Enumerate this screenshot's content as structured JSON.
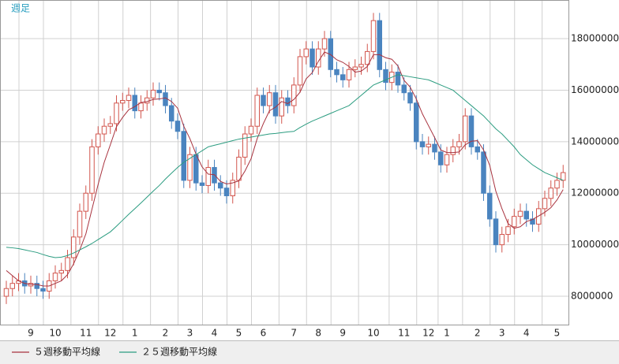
{
  "chart_data": {
    "type": "candlestick",
    "title": "週足",
    "categories": [
      null,
      null,
      null,
      null,
      "9",
      null,
      null,
      null,
      "10",
      null,
      null,
      null,
      null,
      "11",
      null,
      null,
      null,
      "12",
      null,
      null,
      null,
      "1",
      null,
      null,
      null,
      null,
      "2",
      null,
      null,
      null,
      "3",
      null,
      null,
      null,
      "4",
      null,
      null,
      null,
      "5",
      null,
      null,
      null,
      "6",
      null,
      null,
      null,
      null,
      "7",
      null,
      null,
      null,
      "8",
      null,
      null,
      null,
      "9",
      null,
      null,
      null,
      null,
      "10",
      null,
      null,
      null,
      null,
      "11",
      null,
      null,
      null,
      "12",
      null,
      null,
      "1",
      null,
      null,
      null,
      null,
      "2",
      null,
      null,
      null,
      "3",
      null,
      null,
      null,
      "4",
      null,
      null,
      null,
      null,
      "5",
      null
    ],
    "open": [
      8000000,
      8300000,
      8500000,
      8600000,
      8400000,
      8500000,
      8300000,
      8200000,
      8600000,
      8900000,
      9000000,
      9500000,
      10300000,
      11300000,
      12000000,
      13800000,
      14300000,
      14600000,
      14700000,
      15500000,
      15600000,
      15800000,
      15200000,
      15500000,
      15700000,
      16000000,
      15900000,
      15400000,
      14800000,
      14400000,
      12500000,
      13500000,
      12400000,
      12300000,
      13000000,
      12400000,
      12200000,
      11900000,
      12500000,
      13400000,
      14300000,
      14600000,
      15800000,
      15400000,
      15900000,
      15000000,
      15700000,
      15400000,
      16200000,
      17300000,
      17600000,
      16900000,
      17600000,
      18000000,
      16800000,
      16600000,
      16400000,
      16800000,
      16900000,
      17000000,
      17500000,
      18700000,
      16800000,
      16300000,
      16700000,
      16200000,
      15900000,
      15500000,
      14000000,
      13800000,
      13900000,
      13600000,
      13100000,
      13500000,
      13800000,
      14000000,
      15000000,
      13800000,
      13600000,
      12000000,
      11000000,
      10000000,
      10400000,
      10700000,
      11100000,
      11300000,
      11000000,
      10800000,
      11400000,
      11800000,
      12200000,
      12500000
    ],
    "high": [
      8600000,
      8800000,
      8900000,
      8900000,
      8800000,
      8800000,
      8600000,
      8900000,
      9200000,
      9300000,
      9800000,
      10600000,
      11600000,
      12300000,
      14100000,
      14600000,
      14900000,
      15000000,
      15800000,
      15900000,
      16100000,
      16100000,
      15800000,
      16000000,
      16300000,
      16300000,
      16200000,
      15700000,
      15100000,
      14700000,
      13800000,
      13800000,
      12700000,
      13300000,
      13300000,
      12700000,
      12500000,
      12800000,
      13700000,
      14600000,
      14900000,
      16100000,
      16100000,
      16200000,
      16200000,
      16000000,
      16000000,
      16500000,
      17600000,
      17900000,
      17900000,
      17900000,
      18300000,
      18300000,
      17100000,
      16900000,
      17100000,
      17200000,
      17300000,
      17800000,
      19000000,
      19000000,
      17100000,
      17000000,
      17000000,
      16500000,
      16200000,
      15800000,
      14300000,
      14200000,
      14200000,
      13900000,
      13800000,
      14100000,
      14300000,
      15300000,
      15300000,
      14100000,
      13900000,
      12300000,
      11300000,
      10700000,
      11000000,
      11400000,
      11600000,
      11600000,
      11300000,
      11700000,
      12100000,
      12500000,
      12800000,
      13100000
    ],
    "low": [
      7700000,
      8000000,
      8200000,
      8100000,
      8100000,
      8000000,
      7900000,
      7900000,
      8300000,
      8600000,
      8700000,
      9200000,
      10000000,
      11000000,
      11700000,
      13500000,
      14000000,
      14300000,
      14400000,
      15200000,
      15300000,
      14900000,
      14900000,
      15200000,
      15400000,
      15600000,
      15100000,
      14500000,
      14100000,
      12200000,
      12200000,
      12100000,
      12000000,
      12000000,
      12100000,
      11900000,
      11600000,
      11600000,
      12200000,
      13100000,
      14000000,
      14300000,
      15100000,
      15100000,
      14700000,
      14700000,
      15100000,
      15100000,
      15900000,
      17000000,
      16600000,
      16600000,
      17300000,
      16500000,
      16300000,
      16100000,
      16100000,
      16500000,
      16600000,
      16700000,
      17200000,
      16500000,
      16000000,
      16000000,
      15900000,
      15600000,
      15200000,
      13700000,
      13500000,
      13500000,
      13300000,
      12800000,
      12800000,
      13200000,
      13500000,
      13700000,
      13500000,
      13300000,
      11700000,
      10700000,
      9700000,
      9700000,
      10100000,
      10400000,
      10800000,
      10700000,
      10500000,
      10500000,
      11100000,
      11500000,
      11900000,
      12200000
    ],
    "close": [
      8300000,
      8500000,
      8600000,
      8400000,
      8500000,
      8300000,
      8200000,
      8600000,
      8900000,
      9000000,
      9500000,
      10300000,
      11300000,
      12000000,
      13800000,
      14300000,
      14600000,
      14700000,
      15500000,
      15600000,
      15800000,
      15200000,
      15500000,
      15700000,
      16000000,
      15900000,
      15400000,
      14800000,
      14400000,
      12500000,
      13500000,
      12400000,
      12300000,
      13000000,
      12400000,
      12200000,
      11900000,
      12500000,
      13400000,
      14300000,
      14600000,
      15800000,
      15400000,
      15900000,
      15000000,
      15700000,
      15400000,
      16200000,
      17300000,
      17600000,
      16900000,
      17600000,
      18000000,
      16800000,
      16600000,
      16400000,
      16800000,
      16900000,
      17000000,
      17500000,
      18700000,
      16800000,
      16300000,
      16700000,
      16200000,
      15900000,
      15500000,
      14000000,
      13800000,
      13900000,
      13600000,
      13100000,
      13500000,
      13800000,
      14000000,
      15000000,
      13800000,
      13600000,
      12000000,
      11000000,
      10000000,
      10400000,
      10700000,
      11100000,
      11300000,
      11000000,
      10800000,
      11400000,
      11800000,
      12200000,
      12500000,
      12800000
    ],
    "up_color": "#d2564e",
    "down_color": "#4a84bf",
    "series": [
      {
        "name": "５週移動平均線",
        "color": "#a8323e",
        "values": [
          9000000,
          8800000,
          8600000,
          8500000,
          8460000,
          8460000,
          8400000,
          8400000,
          8500000,
          8600000,
          8840000,
          9260000,
          9800000,
          10420000,
          11380000,
          12340000,
          13200000,
          13880000,
          14580000,
          14940000,
          15240000,
          15360000,
          15520000,
          15560000,
          15640000,
          15660000,
          15700000,
          15560000,
          15300000,
          14600000,
          14120000,
          13520000,
          13020000,
          12740000,
          12720000,
          12460000,
          12360000,
          12400000,
          12480000,
          12860000,
          13340000,
          14120000,
          14700000,
          15200000,
          15340000,
          15560000,
          15480000,
          15640000,
          15920000,
          16440000,
          16680000,
          17120000,
          17480000,
          17380000,
          17180000,
          17080000,
          16920000,
          16700000,
          16740000,
          16920000,
          17380000,
          17380000,
          17260000,
          17200000,
          16940000,
          16380000,
          16120000,
          15660000,
          15080000,
          14620000,
          14160000,
          13680000,
          13580000,
          13580000,
          13600000,
          13880000,
          14020000,
          14040000,
          13680000,
          13080000,
          12080000,
          11400000,
          10820000,
          10640000,
          10700000,
          10900000,
          10980000,
          11120000,
          11260000,
          11440000,
          11740000,
          12140000
        ]
      },
      {
        "name": "２５週移動平均線",
        "color": "#2b9c80",
        "values": [
          9900000,
          9880000,
          9850000,
          9800000,
          9750000,
          9700000,
          9620000,
          9550000,
          9500000,
          9520000,
          9580000,
          9680000,
          9800000,
          9920000,
          10050000,
          10200000,
          10350000,
          10500000,
          10720000,
          10950000,
          11180000,
          11400000,
          11620000,
          11850000,
          12080000,
          12300000,
          12550000,
          12780000,
          13000000,
          13200000,
          13350000,
          13500000,
          13650000,
          13800000,
          13860000,
          13920000,
          13980000,
          14040000,
          14100000,
          14140000,
          14180000,
          14220000,
          14260000,
          14300000,
          14320000,
          14350000,
          14380000,
          14400000,
          14550000,
          14680000,
          14800000,
          14900000,
          15000000,
          15100000,
          15200000,
          15300000,
          15400000,
          15600000,
          15800000,
          16000000,
          16200000,
          16300000,
          16400000,
          16500000,
          16600000,
          16560000,
          16520000,
          16480000,
          16440000,
          16400000,
          16300000,
          16200000,
          16100000,
          16000000,
          15800000,
          15600000,
          15400000,
          15200000,
          15000000,
          14750000,
          14500000,
          14300000,
          14050000,
          13800000,
          13500000,
          13300000,
          13100000,
          12950000,
          12800000,
          12700000,
          12600000,
          12500000
        ]
      }
    ],
    "ylim": [
      6900000,
      19500000
    ],
    "yticks": [
      8000000,
      10000000,
      12000000,
      14000000,
      16000000,
      18000000
    ],
    "grid": true
  }
}
